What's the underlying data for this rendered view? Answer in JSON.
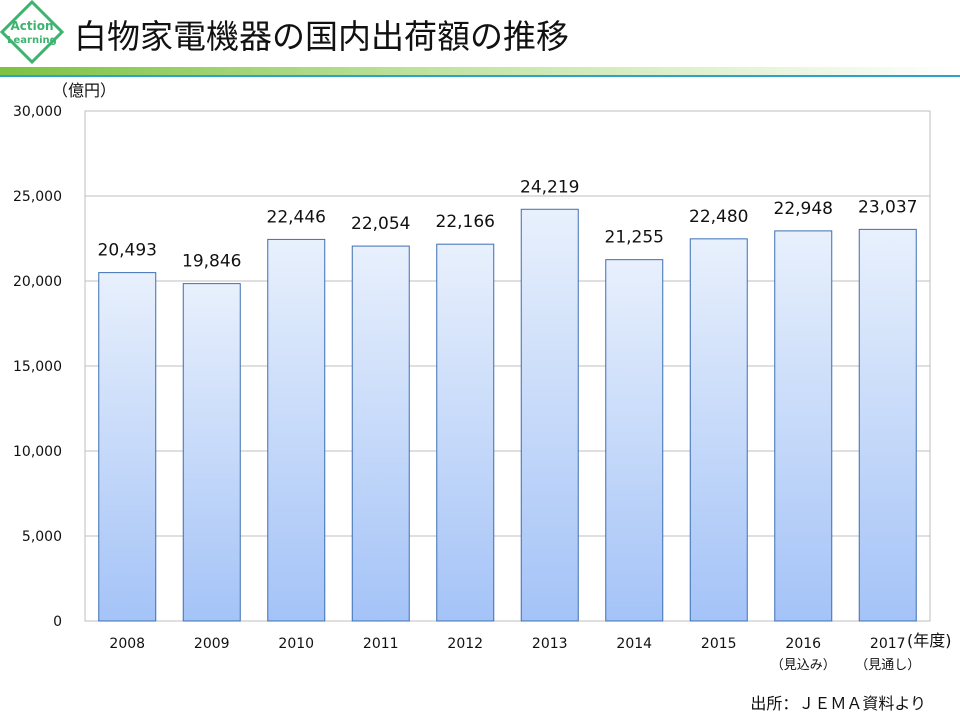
{
  "logo": {
    "line1": "Action",
    "line2": "Learning"
  },
  "header": {
    "title": "白物家電機器の国内出荷額の推移"
  },
  "colors": {
    "accent_green": "#7dc242",
    "accent_blue": "#2fa0c8",
    "logo_green": "#3cb46e"
  },
  "chart_data": {
    "type": "bar",
    "title": "",
    "ylabel": "（億円）",
    "xlabel": "(年度)",
    "ylim": [
      0,
      30000
    ],
    "yticks": [
      0,
      5000,
      10000,
      15000,
      20000,
      25000,
      30000
    ],
    "ytick_labels": [
      "0",
      "5,000",
      "10,000",
      "15,000",
      "20,000",
      "25,000",
      "30,000"
    ],
    "categories": [
      "2008",
      "2009",
      "2010",
      "2011",
      "2012",
      "2013",
      "2014",
      "2015",
      "2016",
      "2017"
    ],
    "category_notes": [
      "",
      "",
      "",
      "",
      "",
      "",
      "",
      "",
      "（見込み）",
      "（見通し）"
    ],
    "values": [
      20493,
      19846,
      22446,
      22054,
      22166,
      24219,
      21255,
      22480,
      22948,
      23037
    ],
    "data_labels": [
      "20,493",
      "19,846",
      "22,446",
      "22,054",
      "22,166",
      "24,219",
      "21,255",
      "22,480",
      "22,948",
      "23,037"
    ],
    "grid": true,
    "legend": "none"
  },
  "footer": {
    "source": "出所：ＪＥＭＡ資料より"
  }
}
